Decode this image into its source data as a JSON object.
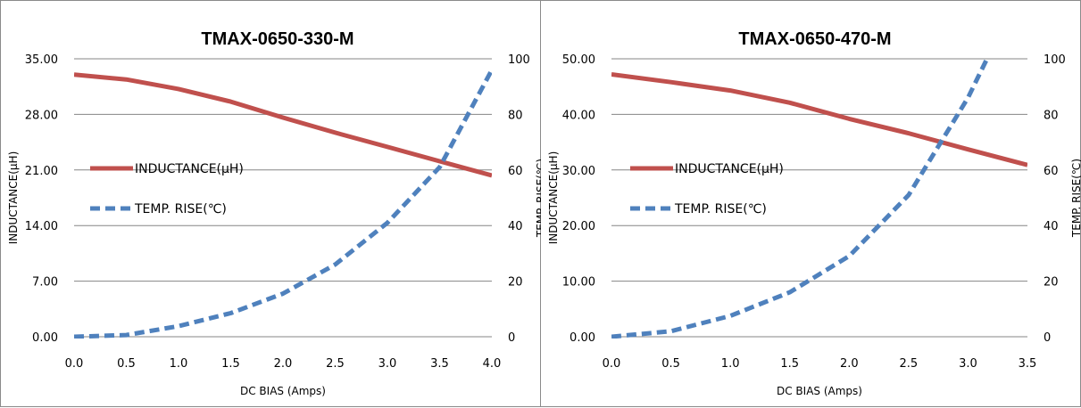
{
  "colors": {
    "inductance": "#c0504d",
    "temp_rise": "#4f81bd",
    "grid": "#868686"
  },
  "chart_data": [
    {
      "type": "line",
      "title": "TMAX-0650-330-M",
      "xlabel": "DC BIAS  (Amps)",
      "ylabel": "INDUCTANCE(μH)",
      "y2label": "TEMP. RISE(℃)",
      "xlim": [
        0,
        4.0
      ],
      "ylim": [
        0,
        35
      ],
      "y2lim": [
        0,
        100
      ],
      "xticks": [
        "0.0",
        "0.5",
        "1.0",
        "1.5",
        "2.0",
        "2.5",
        "3.0",
        "3.5",
        "4.0"
      ],
      "yticks": [
        "0.00",
        "7.00",
        "14.00",
        "21.00",
        "28.00",
        "35.00"
      ],
      "y2ticks": [
        "0",
        "20",
        "40",
        "60",
        "80",
        "100"
      ],
      "grid": true,
      "legend_position": "left",
      "series": [
        {
          "name": "INDUCTANCE(μH)",
          "axis": "left",
          "style": "solid",
          "x": [
            0.0,
            0.5,
            1.0,
            1.5,
            2.0,
            2.5,
            3.0,
            3.5,
            4.0
          ],
          "y": [
            33.0,
            32.4,
            31.2,
            29.6,
            27.6,
            25.7,
            23.9,
            22.1,
            20.3
          ]
        },
        {
          "name": "TEMP. RISE(℃)",
          "axis": "right",
          "style": "dashed",
          "x": [
            0.0,
            0.5,
            1.0,
            1.5,
            2.0,
            2.5,
            3.0,
            3.5,
            4.0
          ],
          "y": [
            0,
            0.6,
            3.8,
            8.5,
            15.5,
            26,
            41,
            61,
            96
          ]
        }
      ]
    },
    {
      "type": "line",
      "title": "TMAX-0650-470-M",
      "xlabel": "DC BIAS  (Amps)",
      "ylabel": "INDUCTANCE(μH)",
      "y2label": "TEMP. RISE(℃)",
      "xlim": [
        0,
        3.5
      ],
      "ylim": [
        0,
        50
      ],
      "y2lim": [
        0,
        100
      ],
      "xticks": [
        "0.0",
        "0.5",
        "1.0",
        "1.5",
        "2.0",
        "2.5",
        "3.0",
        "3.5"
      ],
      "yticks": [
        "0.00",
        "10.00",
        "20.00",
        "30.00",
        "40.00",
        "50.00"
      ],
      "y2ticks": [
        "0",
        "20",
        "40",
        "60",
        "80",
        "100"
      ],
      "grid": true,
      "legend_position": "left",
      "series": [
        {
          "name": "INDUCTANCE(μH)",
          "axis": "left",
          "style": "solid",
          "x": [
            0.0,
            0.5,
            1.0,
            1.5,
            2.0,
            2.5,
            3.0,
            3.5
          ],
          "y": [
            47.2,
            45.8,
            44.3,
            42.1,
            39.2,
            36.6,
            33.7,
            30.9
          ]
        },
        {
          "name": "TEMP. RISE(℃)",
          "axis": "right",
          "style": "dashed",
          "x": [
            0.0,
            0.5,
            1.0,
            1.5,
            2.0,
            2.5,
            2.8,
            3.0,
            3.16
          ],
          "y": [
            0,
            2,
            7.5,
            16,
            29,
            51,
            72,
            86,
            100
          ]
        }
      ]
    }
  ]
}
